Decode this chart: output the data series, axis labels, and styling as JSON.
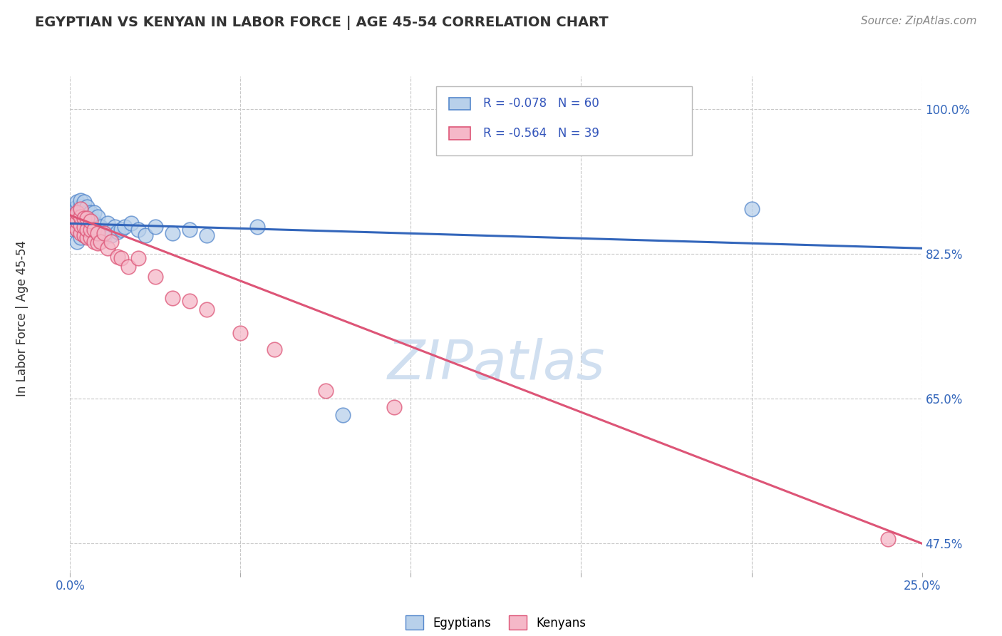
{
  "title": "EGYPTIAN VS KENYAN IN LABOR FORCE | AGE 45-54 CORRELATION CHART",
  "source": "Source: ZipAtlas.com",
  "ylabel": "In Labor Force | Age 45-54",
  "xlim": [
    0.0,
    0.25
  ],
  "ylim": [
    0.44,
    1.04
  ],
  "xticks": [
    0.0,
    0.05,
    0.1,
    0.15,
    0.2,
    0.25
  ],
  "xticklabels": [
    "0.0%",
    "",
    "",
    "",
    "",
    "25.0%"
  ],
  "yticks": [
    0.475,
    0.65,
    0.825,
    1.0
  ],
  "yticklabels": [
    "47.5%",
    "65.0%",
    "82.5%",
    "100.0%"
  ],
  "egyptian_color": "#b8d0ea",
  "kenyan_color": "#f5b8c8",
  "egyptian_edge_color": "#5588cc",
  "kenyan_edge_color": "#dd5577",
  "trend_blue": "#3366bb",
  "trend_pink": "#dd5577",
  "bg_color": "#ffffff",
  "grid_color": "#c8c8c8",
  "watermark": "ZIPatlas",
  "watermark_color": "#d0dff0",
  "legend_r1": "R = -0.078",
  "legend_n1": "N = 60",
  "legend_r2": "R = -0.564",
  "legend_n2": "N = 39",
  "legend_label1": "Egyptians",
  "legend_label2": "Kenyans",
  "egyptian_x": [
    0.001,
    0.001,
    0.001,
    0.002,
    0.002,
    0.002,
    0.002,
    0.002,
    0.002,
    0.002,
    0.003,
    0.003,
    0.003,
    0.003,
    0.003,
    0.003,
    0.003,
    0.004,
    0.004,
    0.004,
    0.004,
    0.004,
    0.004,
    0.005,
    0.005,
    0.005,
    0.005,
    0.005,
    0.006,
    0.006,
    0.006,
    0.006,
    0.007,
    0.007,
    0.007,
    0.007,
    0.008,
    0.008,
    0.008,
    0.009,
    0.009,
    0.01,
    0.01,
    0.011,
    0.011,
    0.012,
    0.013,
    0.014,
    0.015,
    0.016,
    0.018,
    0.02,
    0.022,
    0.025,
    0.03,
    0.035,
    0.04,
    0.055,
    0.08,
    0.2
  ],
  "egyptian_y": [
    0.855,
    0.87,
    0.88,
    0.84,
    0.855,
    0.862,
    0.87,
    0.875,
    0.882,
    0.888,
    0.845,
    0.855,
    0.862,
    0.87,
    0.875,
    0.882,
    0.89,
    0.848,
    0.858,
    0.865,
    0.872,
    0.88,
    0.888,
    0.85,
    0.86,
    0.868,
    0.875,
    0.882,
    0.848,
    0.858,
    0.865,
    0.875,
    0.845,
    0.855,
    0.865,
    0.875,
    0.85,
    0.86,
    0.87,
    0.848,
    0.858,
    0.845,
    0.855,
    0.852,
    0.862,
    0.848,
    0.858,
    0.852,
    0.855,
    0.858,
    0.862,
    0.855,
    0.848,
    0.858,
    0.85,
    0.855,
    0.848,
    0.858,
    0.63,
    0.88
  ],
  "kenyan_x": [
    0.001,
    0.001,
    0.002,
    0.002,
    0.002,
    0.003,
    0.003,
    0.003,
    0.003,
    0.004,
    0.004,
    0.004,
    0.005,
    0.005,
    0.005,
    0.006,
    0.006,
    0.006,
    0.007,
    0.007,
    0.008,
    0.008,
    0.009,
    0.01,
    0.011,
    0.012,
    0.014,
    0.015,
    0.017,
    0.02,
    0.025,
    0.03,
    0.035,
    0.04,
    0.05,
    0.06,
    0.075,
    0.095,
    0.24
  ],
  "kenyan_y": [
    0.86,
    0.87,
    0.855,
    0.865,
    0.875,
    0.85,
    0.86,
    0.87,
    0.88,
    0.848,
    0.858,
    0.868,
    0.845,
    0.855,
    0.868,
    0.845,
    0.855,
    0.865,
    0.84,
    0.855,
    0.838,
    0.85,
    0.84,
    0.85,
    0.832,
    0.84,
    0.822,
    0.82,
    0.81,
    0.82,
    0.798,
    0.772,
    0.768,
    0.758,
    0.73,
    0.71,
    0.66,
    0.64,
    0.48
  ],
  "blue_trend_x": [
    0.0,
    0.25
  ],
  "blue_trend_y": [
    0.862,
    0.832
  ],
  "pink_trend_x": [
    0.0,
    0.25
  ],
  "pink_trend_y": [
    0.872,
    0.475
  ]
}
